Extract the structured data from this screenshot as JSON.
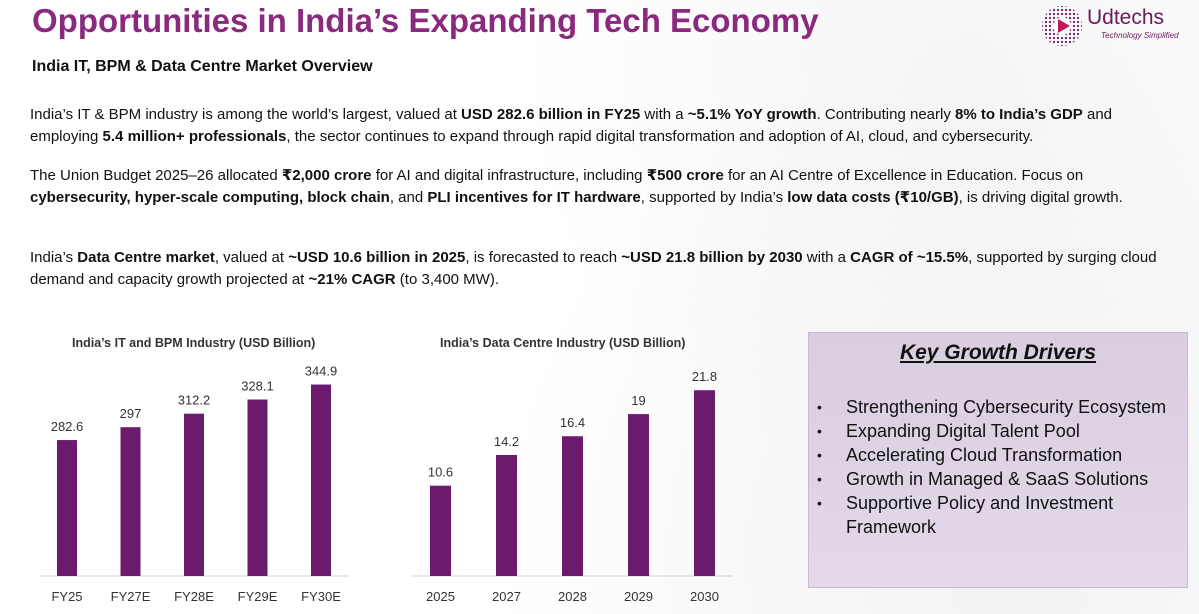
{
  "header": {
    "title": "Opportunities in India’s Expanding Tech Economy",
    "logo_name": "Udtechs",
    "logo_tagline": "Technology Simplified"
  },
  "section_title": "India IT, BPM & Data Centre Market Overview",
  "paragraphs": [
    [
      {
        "t": "India’s IT & BPM industry is among the world’s largest, valued at ",
        "b": false
      },
      {
        "t": "USD 282.6 billion in FY25",
        "b": true
      },
      {
        "t": " with a ",
        "b": false
      },
      {
        "t": "~5.1% YoY growth",
        "b": true
      },
      {
        "t": ". Contributing nearly ",
        "b": false
      },
      {
        "t": "8% to India’s GDP",
        "b": true
      },
      {
        "t": " and employing ",
        "b": false
      },
      {
        "t": "5.4 million+ professionals",
        "b": true
      },
      {
        "t": ", the sector continues to expand through rapid digital transformation and adoption of AI, cloud, and cybersecurity.",
        "b": false
      }
    ],
    [
      {
        "t": "The Union Budget 2025–26 allocated ",
        "b": false
      },
      {
        "t": "₹2,000 crore",
        "b": true
      },
      {
        "t": " for AI and digital infrastructure, including ",
        "b": false
      },
      {
        "t": "₹500 crore",
        "b": true
      },
      {
        "t": " for an AI Centre of Excellence in Education. Focus on ",
        "b": false
      },
      {
        "t": "cybersecurity, hyper-scale computing, block chain",
        "b": true
      },
      {
        "t": ", and ",
        "b": false
      },
      {
        "t": "PLI incentives for IT hardware",
        "b": true
      },
      {
        "t": ", supported by India’s ",
        "b": false
      },
      {
        "t": "low data costs (₹10/GB)",
        "b": true
      },
      {
        "t": ", is driving digital growth.",
        "b": false
      }
    ],
    [
      {
        "t": "India’s ",
        "b": false
      },
      {
        "t": "Data Centre market",
        "b": true
      },
      {
        "t": ", valued at ",
        "b": false
      },
      {
        "t": "~USD 10.6 billion in 2025",
        "b": true
      },
      {
        "t": ", is forecasted to reach ",
        "b": false
      },
      {
        "t": "~USD 21.8 billion by 2030",
        "b": true
      },
      {
        "t": " with a ",
        "b": false
      },
      {
        "t": "CAGR of ~15.5%",
        "b": true
      },
      {
        "t": ", supported by surging cloud demand and capacity growth projected at ",
        "b": false
      },
      {
        "t": "~21% CAGR",
        "b": true
      },
      {
        "t": " (to 3,400 MW).",
        "b": false
      }
    ]
  ],
  "chart_data": [
    {
      "type": "bar",
      "title": "India’s IT and BPM Industry (USD Billion)",
      "categories": [
        "FY25",
        "FY27E",
        "FY28E",
        "FY29E",
        "FY30E"
      ],
      "values": [
        282.6,
        297,
        312.2,
        328.1,
        344.9
      ],
      "value_labels": [
        "282.6",
        "297",
        "312.2",
        "328.1",
        "344.9"
      ],
      "ylim": [
        130,
        350
      ],
      "bar_color": "#6b1a6e",
      "grid": false,
      "legend": "none"
    },
    {
      "type": "bar",
      "title": "India’s Data Centre Industry (USD Billion)",
      "categories": [
        "2025",
        "2027",
        "2028",
        "2029",
        "2030"
      ],
      "values": [
        10.6,
        14.2,
        16.4,
        19,
        21.8
      ],
      "value_labels": [
        "10.6",
        "14.2",
        "16.4",
        "19",
        "21.8"
      ],
      "ylim": [
        0,
        23
      ],
      "bar_color": "#6b1a6e",
      "grid": false,
      "legend": "none"
    }
  ],
  "drivers": {
    "title": "Key Growth Drivers",
    "bullet": "•",
    "items": [
      "Strengthening Cybersecurity Ecosystem",
      "Expanding Digital Talent Pool",
      "Accelerating Cloud Transformation",
      "Growth in Managed & SaaS Solutions",
      "Supportive Policy and Investment Framework"
    ]
  },
  "colors": {
    "title": "#8a2a7e",
    "bar": "#6b1a6e",
    "drivers_bg": "#dcd0e3"
  }
}
